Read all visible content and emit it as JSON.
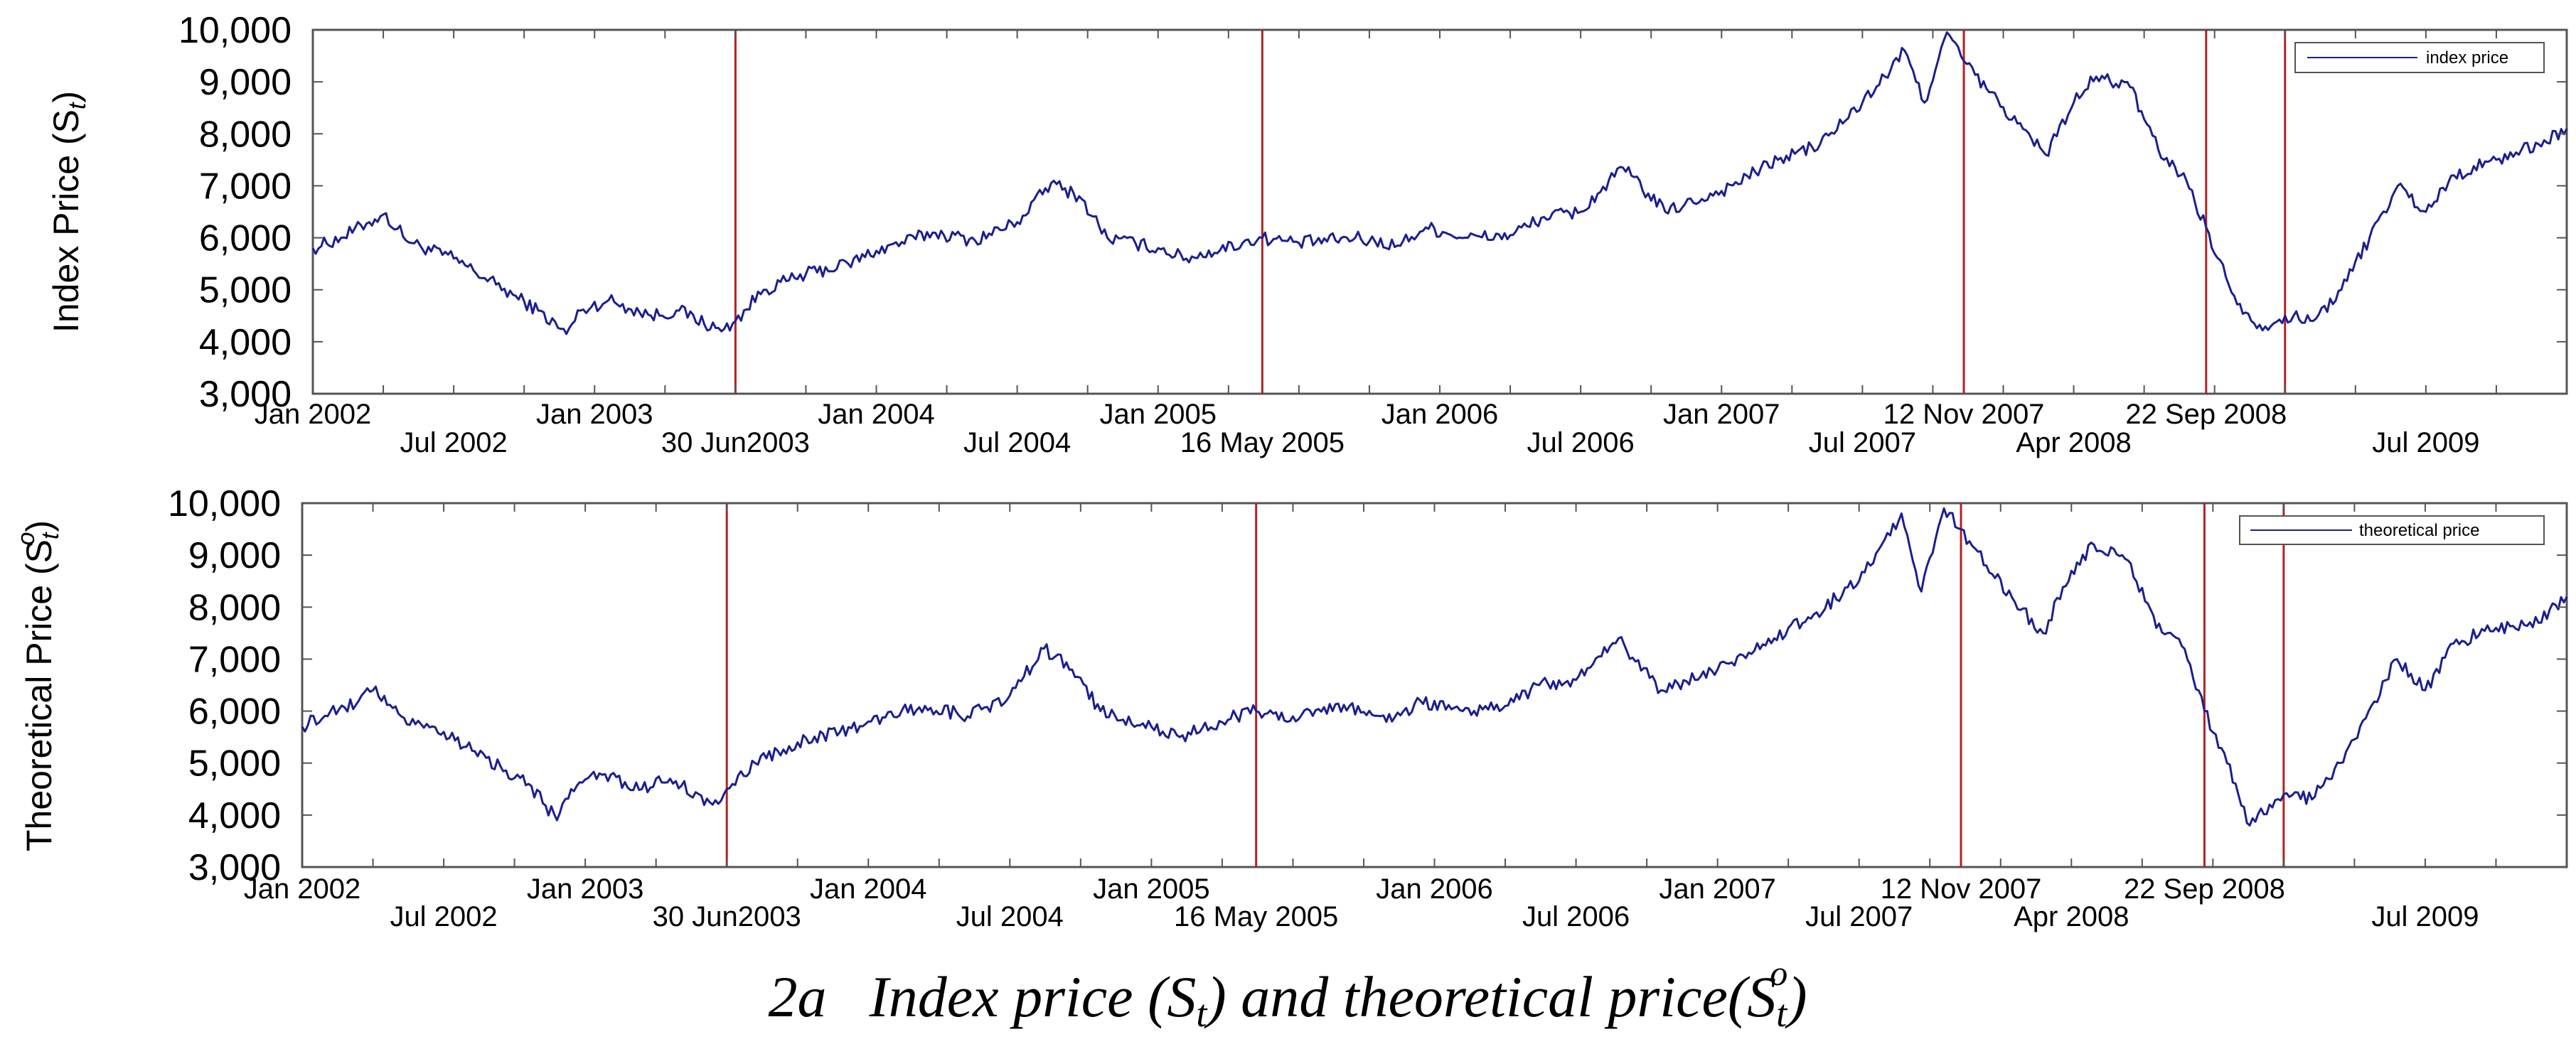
{
  "chart_data": [
    {
      "type": "line",
      "ylabel": "Index Price (S",
      "ylabel_sub": "t",
      "ylabel_close": ")",
      "ylim": [
        3000,
        10000
      ],
      "yticks": [
        "10,000",
        "9,000",
        "8,000",
        "7,000",
        "6,000",
        "5,000",
        "4,000",
        "3,000"
      ],
      "ytick_values": [
        10000,
        9000,
        8000,
        7000,
        6000,
        5000,
        4000,
        3000
      ],
      "xlim": [
        2002.0,
        2010.0
      ],
      "xticks_top": [
        {
          "label": "Jan 2002",
          "t": 2002.0
        },
        {
          "label": "Jan 2003",
          "t": 2003.0
        },
        {
          "label": "Jan 2004",
          "t": 2004.0
        },
        {
          "label": "Jan 2005",
          "t": 2005.0
        },
        {
          "label": "Jan 2006",
          "t": 2006.0
        },
        {
          "label": "Jan 2007",
          "t": 2007.0
        },
        {
          "label": "12 Nov 2007",
          "t": 2007.86
        },
        {
          "label": "22 Sep 2008",
          "t": 2008.72
        }
      ],
      "xticks_bottom": [
        {
          "label": "Jul 2002",
          "t": 2002.5
        },
        {
          "label": "30 Jun2003",
          "t": 2003.5
        },
        {
          "label": "Jul 2004",
          "t": 2004.5
        },
        {
          "label": "16 May 2005",
          "t": 2005.37
        },
        {
          "label": "Jul 2006",
          "t": 2006.5
        },
        {
          "label": "Jul 2007",
          "t": 2007.5
        },
        {
          "label": "Apr 2008",
          "t": 2008.25
        },
        {
          "label": "Jul 2009",
          "t": 2009.5
        }
      ],
      "event_lines": [
        2003.5,
        2005.37,
        2007.86,
        2008.72,
        2009.0
      ],
      "legend": "index price",
      "series": [
        {
          "name": "index price",
          "color": "#1a1f8f",
          "x": [
            2002.0,
            2002.1,
            2002.2,
            2002.25,
            2002.35,
            2002.5,
            2002.65,
            2002.8,
            2002.9,
            2002.95,
            2003.05,
            2003.2,
            2003.3,
            2003.45,
            2003.5,
            2003.6,
            2003.75,
            2003.9,
            2004.0,
            2004.2,
            2004.35,
            2004.5,
            2004.62,
            2004.72,
            2004.82,
            2005.0,
            2005.1,
            2005.3,
            2005.37,
            2005.5,
            2005.7,
            2005.85,
            2005.95,
            2006.1,
            2006.25,
            2006.37,
            2006.5,
            2006.65,
            2006.8,
            2007.0,
            2007.2,
            2007.35,
            2007.5,
            2007.58,
            2007.65,
            2007.72,
            2007.8,
            2007.86,
            2007.95,
            2008.05,
            2008.15,
            2008.25,
            2008.33,
            2008.45,
            2008.55,
            2008.65,
            2008.72,
            2008.8,
            2008.88,
            2008.95,
            2009.0,
            2009.1,
            2009.2,
            2009.3,
            2009.4,
            2009.5,
            2009.6,
            2009.75,
            2009.9,
            2010.0
          ],
          "values": [
            5800,
            6000,
            6300,
            6450,
            5900,
            5600,
            5100,
            4600,
            4150,
            4600,
            4800,
            4500,
            4600,
            4200,
            4400,
            5000,
            5300,
            5500,
            5750,
            6100,
            5950,
            6300,
            7050,
            6800,
            6000,
            5800,
            5600,
            5900,
            6000,
            5900,
            6000,
            5850,
            6200,
            6000,
            6050,
            6400,
            6500,
            7350,
            6500,
            6900,
            7500,
            7800,
            8600,
            9100,
            9600,
            8600,
            9950,
            9400,
            8800,
            8200,
            7600,
            8600,
            9100,
            8900,
            7700,
            7100,
            6200,
            5100,
            4400,
            4300,
            4500,
            4400,
            5000,
            6000,
            7000,
            6500,
            7200,
            7500,
            7800,
            8100
          ]
        }
      ]
    },
    {
      "type": "line",
      "ylabel": "Theoretical Price (S",
      "ylabel_sub": "t",
      "ylabel_sup": "o",
      "ylabel_close": ")",
      "ylim": [
        3000,
        10000
      ],
      "yticks": [
        "10,000",
        "9,000",
        "8,000",
        "7,000",
        "6,000",
        "5,000",
        "4,000",
        "3,000"
      ],
      "ytick_values": [
        10000,
        9000,
        8000,
        7000,
        6000,
        5000,
        4000,
        3000
      ],
      "xlim": [
        2002.0,
        2010.0
      ],
      "xticks_top": [
        {
          "label": "Jan 2002",
          "t": 2002.0
        },
        {
          "label": "Jan 2003",
          "t": 2003.0
        },
        {
          "label": "Jan 2004",
          "t": 2004.0
        },
        {
          "label": "Jan 2005",
          "t": 2005.0
        },
        {
          "label": "Jan 2006",
          "t": 2006.0
        },
        {
          "label": "Jan 2007",
          "t": 2007.0
        },
        {
          "label": "12 Nov 2007",
          "t": 2007.86
        },
        {
          "label": "22 Sep 2008",
          "t": 2008.72
        }
      ],
      "xticks_bottom": [
        {
          "label": "Jul 2002",
          "t": 2002.5
        },
        {
          "label": "30 Jun2003",
          "t": 2003.5
        },
        {
          "label": "Jul 2004",
          "t": 2004.5
        },
        {
          "label": "16 May 2005",
          "t": 2005.37
        },
        {
          "label": "Jul 2006",
          "t": 2006.5
        },
        {
          "label": "Jul 2007",
          "t": 2007.5
        },
        {
          "label": "Apr 2008",
          "t": 2008.25
        },
        {
          "label": "Jul 2009",
          "t": 2009.5
        }
      ],
      "event_lines": [
        2003.5,
        2005.37,
        2007.86,
        2008.72,
        2009.0
      ],
      "legend": "theoretical price",
      "series": [
        {
          "name": "theoretical price",
          "color": "#1a1f8f",
          "x": [
            2002.0,
            2002.1,
            2002.2,
            2002.25,
            2002.35,
            2002.5,
            2002.65,
            2002.8,
            2002.9,
            2002.95,
            2003.05,
            2003.2,
            2003.3,
            2003.45,
            2003.5,
            2003.6,
            2003.75,
            2003.9,
            2004.0,
            2004.2,
            2004.35,
            2004.5,
            2004.62,
            2004.72,
            2004.82,
            2005.0,
            2005.1,
            2005.3,
            2005.37,
            2005.5,
            2005.7,
            2005.85,
            2005.95,
            2006.1,
            2006.25,
            2006.37,
            2006.5,
            2006.65,
            2006.8,
            2007.0,
            2007.2,
            2007.35,
            2007.5,
            2007.58,
            2007.65,
            2007.72,
            2007.8,
            2007.86,
            2007.95,
            2008.05,
            2008.15,
            2008.25,
            2008.33,
            2008.45,
            2008.55,
            2008.65,
            2008.72,
            2008.8,
            2008.88,
            2008.95,
            2009.0,
            2009.1,
            2009.2,
            2009.3,
            2009.4,
            2009.5,
            2009.6,
            2009.75,
            2009.9,
            2010.0
          ],
          "values": [
            5700,
            6000,
            6200,
            6400,
            5900,
            5600,
            5100,
            4600,
            3900,
            4500,
            4800,
            4500,
            4700,
            4200,
            4500,
            5000,
            5400,
            5600,
            5800,
            6100,
            5900,
            6300,
            7200,
            6800,
            6000,
            5700,
            5500,
            5900,
            6000,
            5900,
            6100,
            5800,
            6200,
            6000,
            6100,
            6500,
            6600,
            7400,
            6400,
            6800,
            7400,
            7900,
            8500,
            9200,
            9800,
            8300,
            9900,
            9500,
            8800,
            8100,
            7500,
            8700,
            9200,
            8900,
            7600,
            7200,
            6000,
            5000,
            3800,
            4200,
            4400,
            4300,
            5000,
            6000,
            7000,
            6400,
            7300,
            7600,
            7700,
            8200
          ]
        }
      ]
    }
  ],
  "caption": {
    "number": "2a",
    "text_a": "Index price (S",
    "sub_a": "t",
    "text_b": ") and theoretical price(S",
    "sub_b": "t",
    "sup_b": "o",
    "text_c": ")"
  },
  "colors": {
    "series": "#1a1f8f",
    "event_line": "#b22222",
    "axis": "#555555"
  }
}
